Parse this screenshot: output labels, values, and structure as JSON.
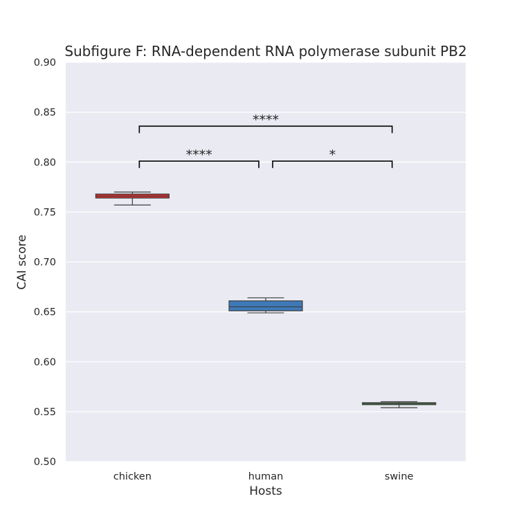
{
  "chart_data": {
    "type": "box",
    "title": "Subfigure F: RNA-dependent RNA polymerase subunit PB2",
    "xlabel": "Hosts",
    "ylabel": "CAI score",
    "ylim": [
      0.5,
      0.9
    ],
    "yticks": [
      0.5,
      0.55,
      0.6,
      0.65,
      0.7,
      0.75,
      0.8,
      0.85,
      0.9
    ],
    "ytick_labels": [
      "0.50",
      "0.55",
      "0.60",
      "0.65",
      "0.70",
      "0.75",
      "0.80",
      "0.85",
      "0.90"
    ],
    "grid": true,
    "categories": [
      "chicken",
      "human",
      "swine"
    ],
    "boxes": [
      {
        "category": "chicken",
        "whislo": 0.757,
        "q1": 0.764,
        "med": 0.766,
        "q3": 0.768,
        "whishi": 0.77,
        "color": "#d62f2f"
      },
      {
        "category": "human",
        "whislo": 0.649,
        "q1": 0.651,
        "med": 0.655,
        "q3": 0.661,
        "whishi": 0.664,
        "color": "#3f7ab8"
      },
      {
        "category": "swine",
        "whislo": 0.554,
        "q1": 0.557,
        "med": 0.558,
        "q3": 0.559,
        "whishi": 0.56,
        "color": "#4ba84b"
      }
    ],
    "annotations": [
      {
        "from": "chicken",
        "to": "human",
        "y": 0.801,
        "label": "****"
      },
      {
        "from": "human",
        "to": "swine",
        "y": 0.801,
        "label": "*"
      },
      {
        "from": "chicken",
        "to": "swine",
        "y": 0.836,
        "label": "****"
      }
    ],
    "colors": {
      "plot_background": "#eaeaf2",
      "gridline": "#ffffff",
      "box_edge": "#3d3d3d",
      "bracket": "#000000"
    }
  }
}
